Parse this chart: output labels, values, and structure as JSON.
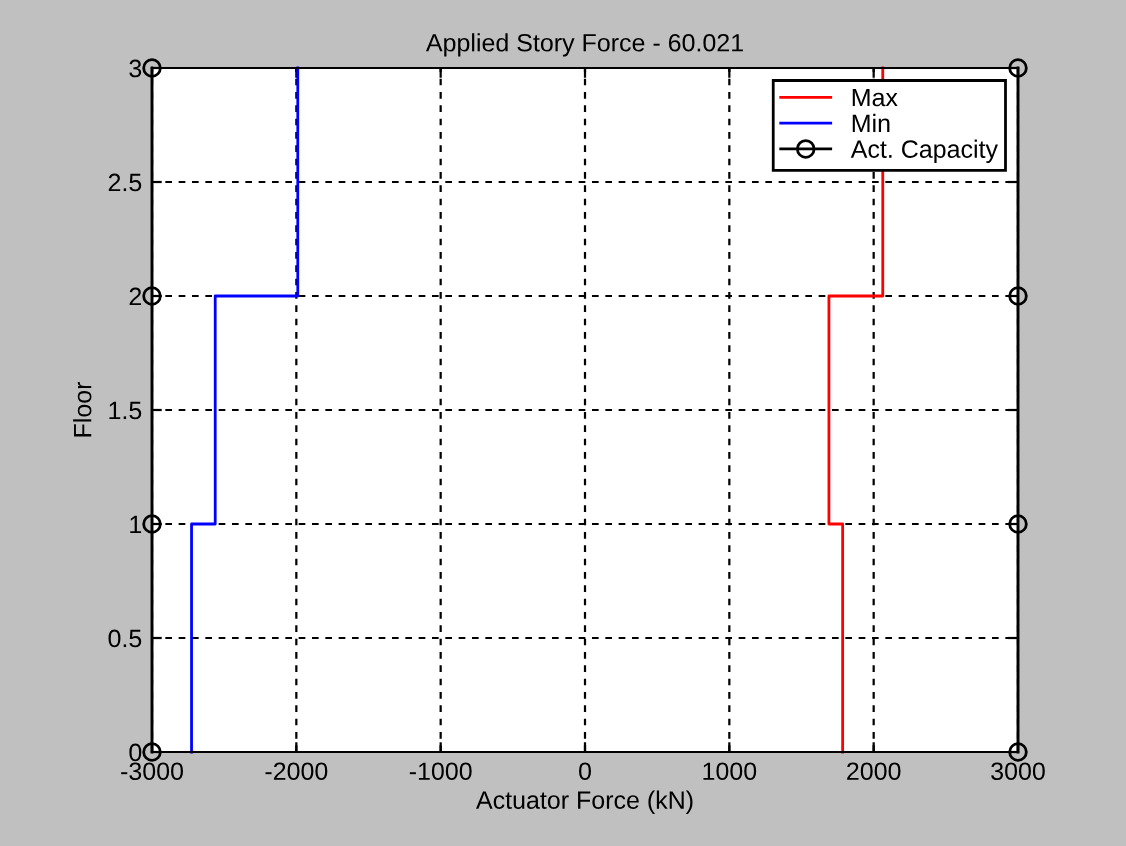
{
  "chart_data": {
    "type": "line",
    "title": "Applied Story Force - 60.021",
    "xlabel": "Actuator Force (kN)",
    "ylabel": "Floor",
    "series": [
      {
        "name": "Max",
        "color": "#ff0000",
        "x": [
          1785,
          1785,
          1690,
          1690,
          2063,
          2063
        ],
        "values": [
          0,
          1,
          1,
          2,
          2,
          3
        ],
        "marker": "none"
      },
      {
        "name": "Min",
        "color": "#0000ff",
        "x": [
          -2726,
          -2726,
          -2562,
          -2562,
          -1990,
          -1990
        ],
        "values": [
          0,
          1,
          1,
          2,
          2,
          3
        ],
        "marker": "none"
      },
      {
        "name": "Act. Capacity",
        "color": "#000000",
        "x": [
          -3000,
          -3000,
          -3000,
          -3000,
          0,
          3000,
          3000,
          3000,
          3000
        ],
        "values": [
          0,
          1,
          2,
          3,
          null,
          0,
          1,
          2,
          3
        ],
        "marker": "circle"
      }
    ],
    "xlim": [
      -3000,
      3000
    ],
    "xticks": [
      -3000,
      -2000,
      -1000,
      0,
      1000,
      2000,
      3000
    ],
    "ylim": [
      0,
      3
    ],
    "yticks": [
      0,
      0.5,
      1,
      1.5,
      2,
      2.5,
      3
    ],
    "grid": true,
    "line_style": "solid",
    "legend": "top right"
  }
}
